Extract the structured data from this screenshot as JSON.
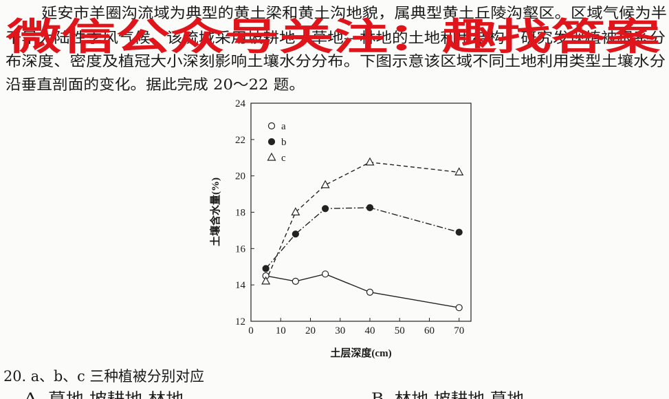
{
  "passage": [
    "延安市羊圈沟流域为典型的黄土梁和黄土沟地貌，属典型黄土丘陵沟壑区。区域气候为半",
    "干旱大陆性季风气候，该流域采用坡耕地—草地—林地的土地利用结构，研究发现植被根系分",
    "布深度、密度及植冠大小深刻影响土壤水分分布。下图示意该区域不同土地利用类型土壤水分",
    "沿垂直剖面的变化。据此完成 20～22 题。"
  ],
  "watermark": "微信公众号关注：趣找答案",
  "chart_data": {
    "type": "line",
    "x_label": "土层深度(cm)",
    "y_label": "土壤含水量(%)",
    "x": [
      5,
      15,
      25,
      40,
      70
    ],
    "series": [
      {
        "name": "a",
        "color": "#222222",
        "marker": "circle-open",
        "line_style": "solid",
        "values": [
          14.5,
          14.2,
          14.6,
          13.6,
          12.75
        ]
      },
      {
        "name": "b",
        "color": "#222222",
        "marker": "circle-filled",
        "line_style": "dash-dot",
        "values": [
          14.9,
          16.8,
          18.2,
          18.25,
          16.9
        ]
      },
      {
        "name": "c",
        "color": "#222222",
        "marker": "triangle-open",
        "line_style": "dashed",
        "values": [
          14.2,
          18.0,
          19.5,
          20.75,
          20.2
        ]
      }
    ],
    "xlim": [
      0,
      74
    ],
    "xticks": [
      0,
      10,
      20,
      30,
      40,
      50,
      60,
      70
    ],
    "ylim": [
      12,
      24
    ],
    "yticks": [
      12,
      14,
      16,
      18,
      20,
      22,
      24
    ],
    "legend": "top-left"
  },
  "question": {
    "stem": "20. a、b、c 三种植被分别对应",
    "options": [
      "A. 草地 坡耕地 林地",
      "B. 林地 坡耕地 草地"
    ]
  }
}
